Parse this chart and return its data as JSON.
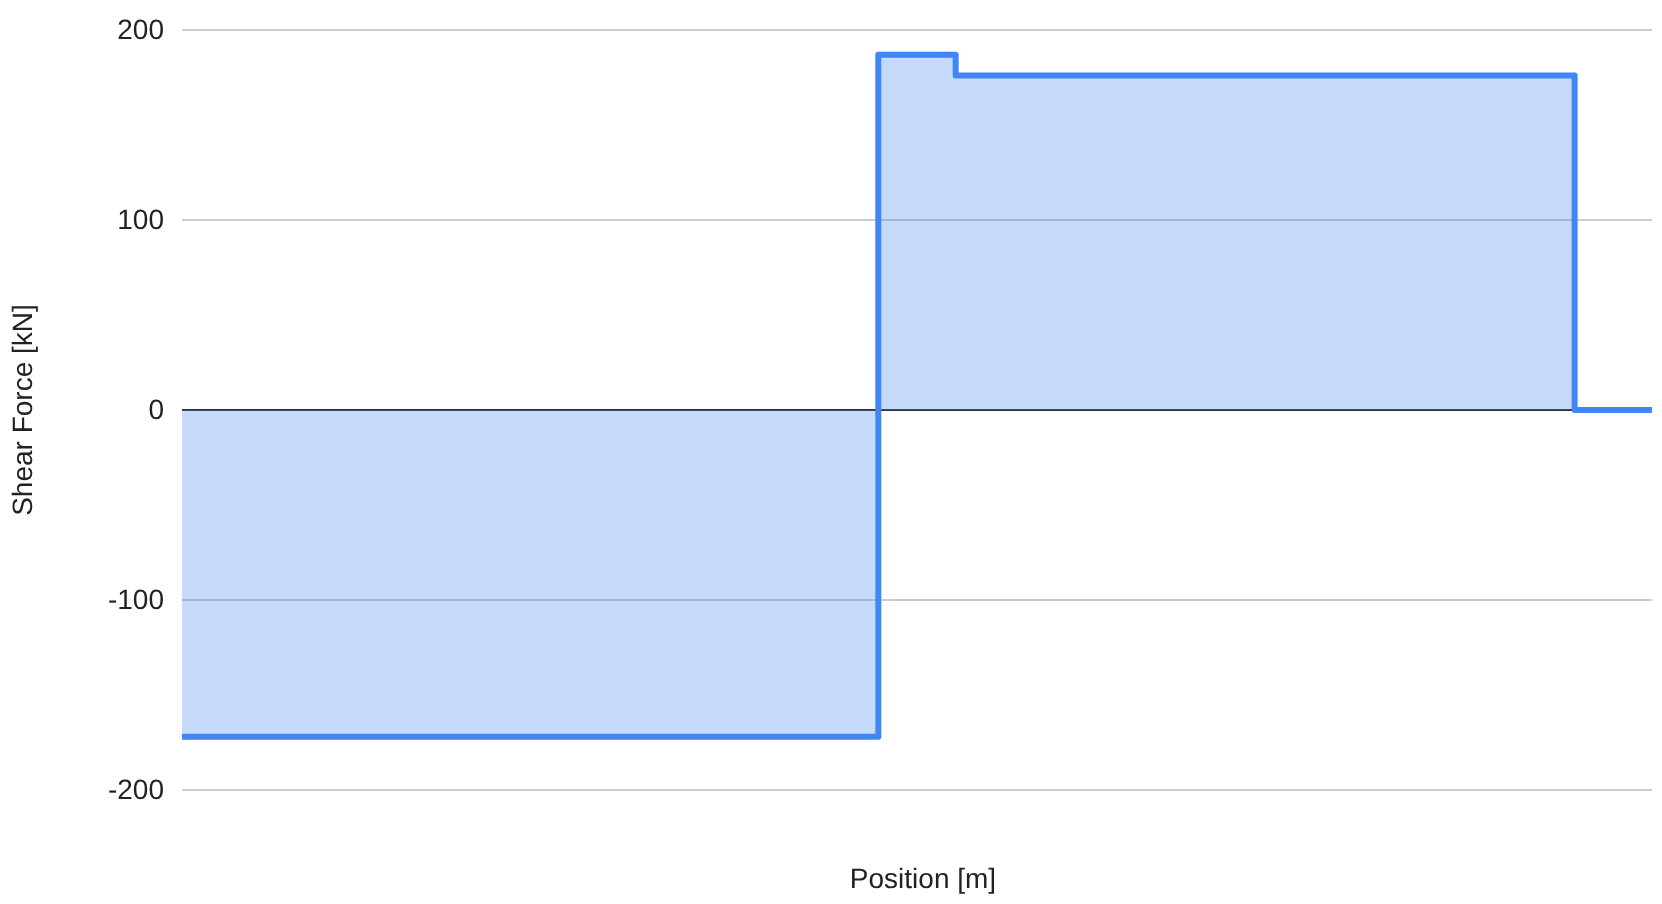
{
  "chart_data": {
    "type": "step",
    "xlabel": "Position [m]",
    "ylabel": "Shear Force [kN]",
    "categories": [
      null,
      null,
      null,
      null,
      null,
      null,
      null,
      null,
      null,
      null,
      null,
      null,
      null,
      null,
      null,
      null,
      null,
      null,
      null,
      null
    ],
    "series": [
      {
        "color": "#4285f4",
        "values": [
          -172,
          -172,
          -172,
          -172,
          -172,
          -172,
          -172,
          -172,
          -172,
          187,
          176,
          176,
          176,
          176,
          176,
          176,
          176,
          176,
          0,
          0
        ]
      }
    ],
    "ylim": [
      -200,
      200
    ],
    "yticks": [
      -200,
      -100,
      0,
      100,
      200
    ],
    "grid": "y",
    "tick_labels": "y"
  }
}
